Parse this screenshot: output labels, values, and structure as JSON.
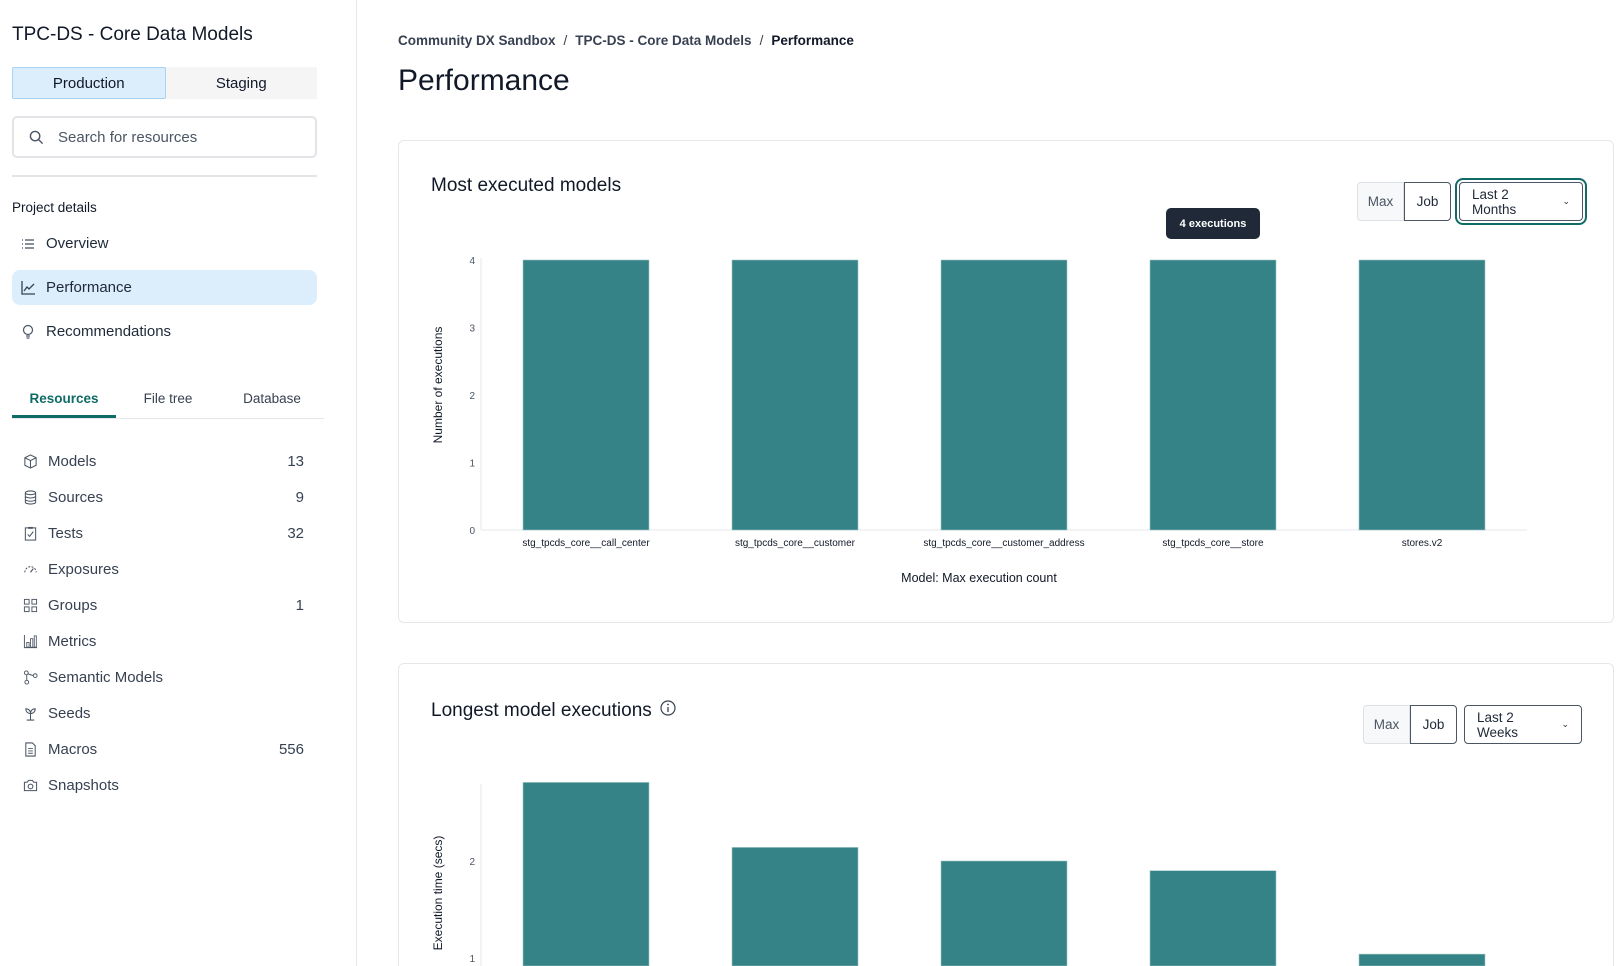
{
  "sidebar": {
    "project_title": "TPC-DS - Core Data Models",
    "environments": [
      "Production",
      "Staging"
    ],
    "search_placeholder": "Search for resources",
    "section_label": "Project details",
    "nav": [
      {
        "label": "Overview",
        "icon": "list-icon"
      },
      {
        "label": "Performance",
        "icon": "line-chart-icon",
        "active": true
      },
      {
        "label": "Recommendations",
        "icon": "lightbulb-icon"
      }
    ],
    "tabs": [
      "Resources",
      "File tree",
      "Database"
    ],
    "resources": [
      {
        "label": "Models",
        "count": "13",
        "icon": "cube-icon"
      },
      {
        "label": "Sources",
        "count": "9",
        "icon": "database-icon"
      },
      {
        "label": "Tests",
        "count": "32",
        "icon": "clipboard-check-icon"
      },
      {
        "label": "Exposures",
        "count": "",
        "icon": "gauge-icon"
      },
      {
        "label": "Groups",
        "count": "1",
        "icon": "grid-icon"
      },
      {
        "label": "Metrics",
        "count": "",
        "icon": "bar-chart-icon"
      },
      {
        "label": "Semantic Models",
        "count": "",
        "icon": "nodes-icon"
      },
      {
        "label": "Seeds",
        "count": "",
        "icon": "sprout-icon"
      },
      {
        "label": "Macros",
        "count": "556",
        "icon": "file-text-icon"
      },
      {
        "label": "Snapshots",
        "count": "",
        "icon": "camera-icon"
      }
    ]
  },
  "breadcrumb": [
    "Community DX Sandbox",
    "TPC-DS - Core Data Models",
    "Performance"
  ],
  "page_title": "Performance",
  "cards": [
    {
      "title": "Most executed models",
      "toggle": [
        "Max",
        "Job"
      ],
      "range": "Last 2 Months",
      "tooltip": "4 executions"
    },
    {
      "title": "Longest model executions",
      "toggle": [
        "Max",
        "Job"
      ],
      "range": "Last 2 Weeks"
    }
  ],
  "chart_data": [
    {
      "type": "bar",
      "title": "Most executed models",
      "categories": [
        "stg_tpcds_core__call_center",
        "stg_tpcds_core__customer",
        "stg_tpcds_core__customer_address",
        "stg_tpcds_core__store",
        "stores.v2"
      ],
      "values": [
        4,
        4,
        4,
        4,
        4
      ],
      "xlabel": "Model: Max execution count",
      "ylabel": "Number of executions",
      "yticks": [
        "0",
        "1",
        "2",
        "3",
        "4"
      ],
      "ylim": [
        0,
        4
      ],
      "color": "#358386"
    },
    {
      "type": "bar",
      "title": "Longest model executions",
      "values": [
        2.81,
        2.14,
        2.0,
        1.9,
        1.04
      ],
      "ylabel": "Execution time (secs)",
      "yticks": [
        "1",
        "2"
      ],
      "color": "#358386"
    }
  ]
}
